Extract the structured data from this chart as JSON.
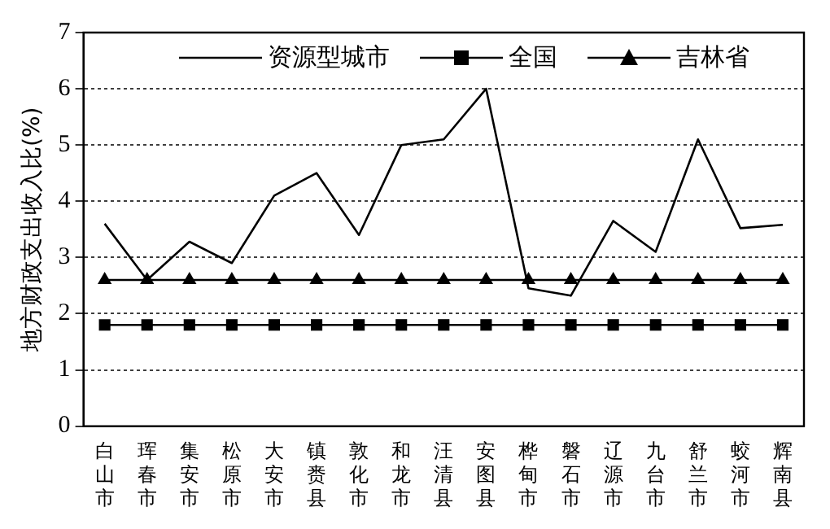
{
  "chart_data": {
    "type": "line",
    "ylabel": "地方财政支出收入比(%)",
    "categories": [
      "白山市",
      "珲春市",
      "集安市",
      "松原市",
      "大安市",
      "镇赉县",
      "敦化市",
      "和龙市",
      "汪清县",
      "安图县",
      "桦甸市",
      "磐石市",
      "辽源市",
      "九台市",
      "舒兰市",
      "蛟河市",
      "辉南县"
    ],
    "series": [
      {
        "name": "资源型城市",
        "color": "#000000",
        "marker": "none",
        "values": [
          3.6,
          2.6,
          3.28,
          2.9,
          4.1,
          4.5,
          3.4,
          5.0,
          5.1,
          6.0,
          2.45,
          2.32,
          3.65,
          3.1,
          5.1,
          3.52,
          3.58
        ]
      },
      {
        "name": "全国",
        "color": "#000000",
        "marker": "square",
        "values": [
          1.8,
          1.8,
          1.8,
          1.8,
          1.8,
          1.8,
          1.8,
          1.8,
          1.8,
          1.8,
          1.8,
          1.8,
          1.8,
          1.8,
          1.8,
          1.8,
          1.8
        ]
      },
      {
        "name": "吉林省",
        "color": "#000000",
        "marker": "triangle",
        "values": [
          2.6,
          2.6,
          2.6,
          2.6,
          2.6,
          2.6,
          2.6,
          2.6,
          2.6,
          2.6,
          2.6,
          2.6,
          2.6,
          2.6,
          2.6,
          2.6,
          2.6
        ]
      }
    ],
    "ylim": [
      0,
      7
    ],
    "yticks": [
      0,
      1,
      2,
      3,
      4,
      5,
      6,
      7
    ],
    "grid": "y",
    "legend": "top"
  }
}
